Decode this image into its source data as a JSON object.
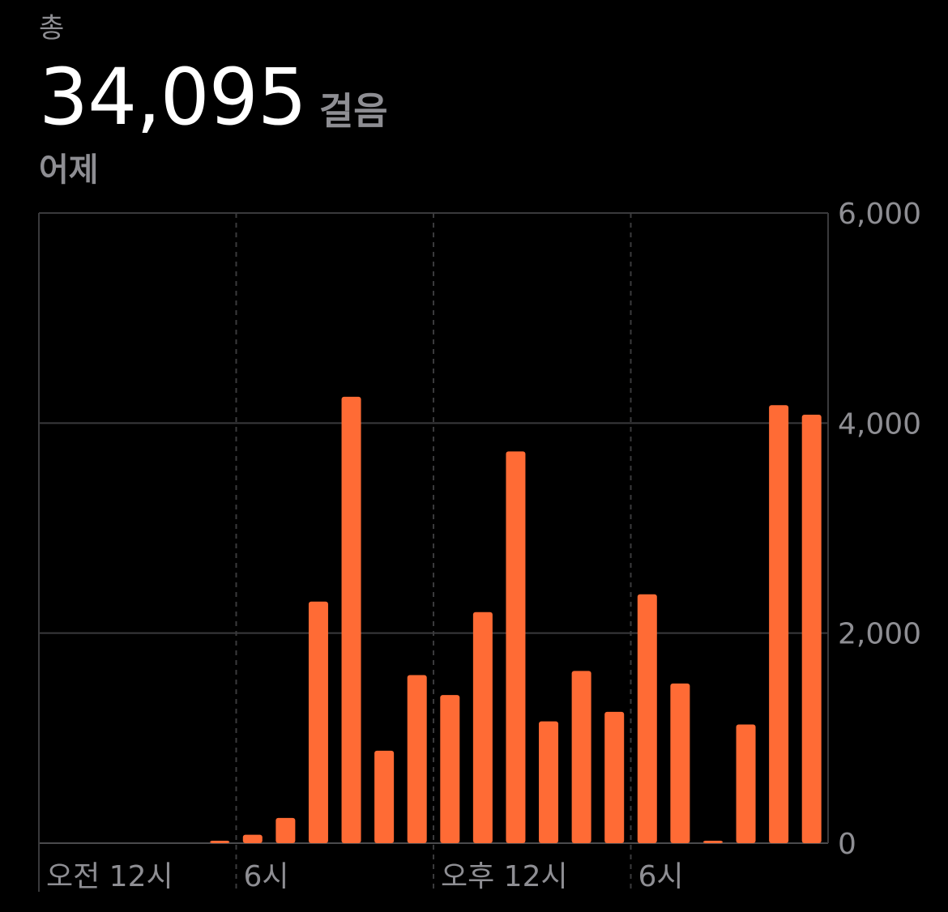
{
  "header": {
    "total_label": "총",
    "total_value": "34,095",
    "total_unit": "걸음",
    "date_label": "어제"
  },
  "colors": {
    "bar": "#ff6b35",
    "background": "#000000",
    "gridline": "#3a3a3c",
    "axis_text": "#8e8e93"
  },
  "chart_data": {
    "type": "bar",
    "categories": [
      "0",
      "1",
      "2",
      "3",
      "4",
      "5",
      "6",
      "7",
      "8",
      "9",
      "10",
      "11",
      "12",
      "13",
      "14",
      "15",
      "16",
      "17",
      "18",
      "19",
      "20",
      "21",
      "22",
      "23"
    ],
    "values": [
      0,
      0,
      0,
      0,
      0,
      10,
      80,
      240,
      2300,
      4250,
      880,
      1600,
      1410,
      2200,
      3730,
      1160,
      1640,
      1250,
      2370,
      1520,
      20,
      1130,
      4170,
      4080
    ],
    "ylim": [
      0,
      6000
    ],
    "y_ticks": [
      {
        "value": 0,
        "label": "0"
      },
      {
        "value": 2000,
        "label": "2,000"
      },
      {
        "value": 4000,
        "label": "4,000"
      },
      {
        "value": 6000,
        "label": "6,000"
      }
    ],
    "x_ticks": [
      {
        "hour": 0,
        "label": "오전 12시"
      },
      {
        "hour": 6,
        "label": "6시"
      },
      {
        "hour": 12,
        "label": "오후 12시"
      },
      {
        "hour": 18,
        "label": "6시"
      }
    ],
    "grid": true,
    "y_axis_position": "right"
  }
}
